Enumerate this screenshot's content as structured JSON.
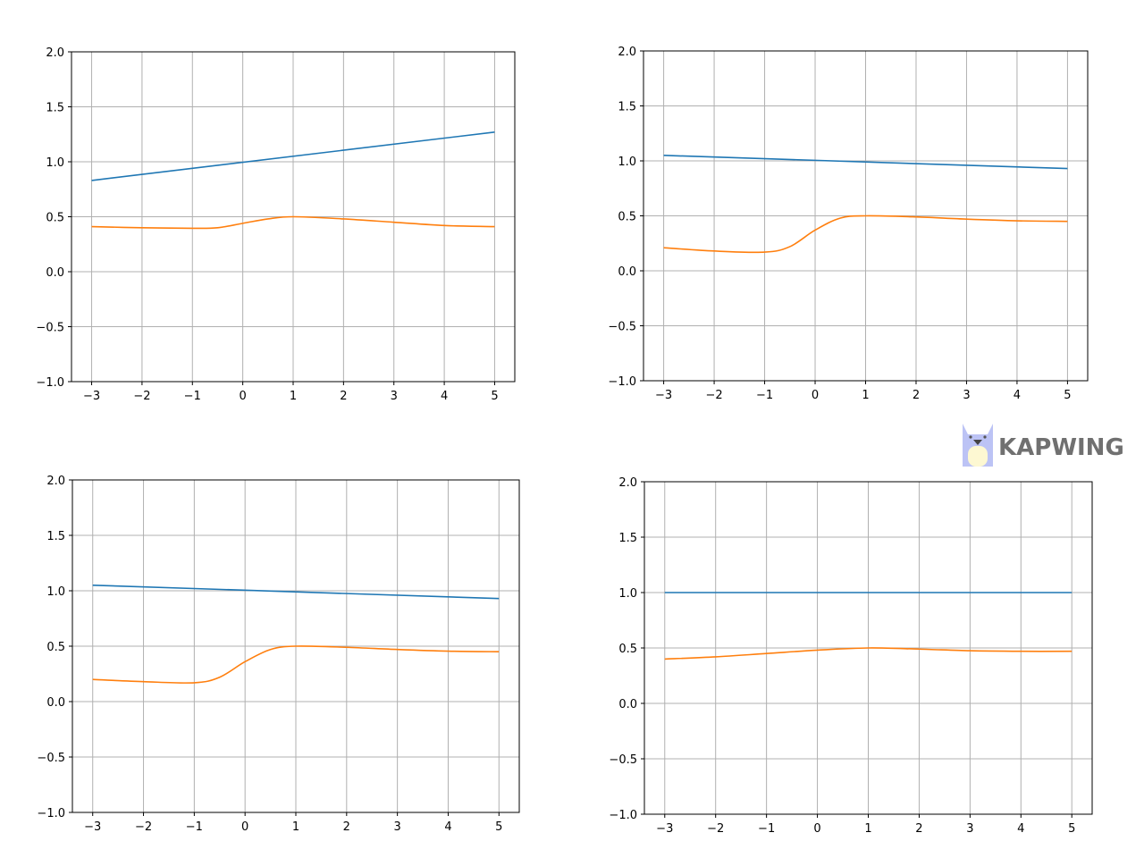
{
  "colors": {
    "series1": "#1f77b4",
    "series2": "#ff7f0e",
    "grid": "#b0b0b0"
  },
  "watermark": {
    "text": "KAPWING",
    "icon": "kapwing-cat-logo-icon"
  },
  "chart_data": [
    {
      "type": "line",
      "grid": true,
      "xlim": [
        -3.4,
        5.4
      ],
      "ylim": [
        -1,
        2
      ],
      "xticks": [
        "−3",
        "−2",
        "−1",
        "0",
        "1",
        "2",
        "3",
        "4",
        "5"
      ],
      "yticks": [
        "−1.0",
        "−0.5",
        "0.0",
        "0.5",
        "1.0",
        "1.5",
        "2.0"
      ],
      "series": [
        {
          "x": [
            -3,
            5
          ],
          "y": [
            0.83,
            1.27
          ]
        },
        {
          "x": [
            -3,
            -2,
            -1,
            -0.5,
            0,
            0.5,
            1,
            2,
            3,
            4,
            5
          ],
          "y": [
            0.41,
            0.4,
            0.395,
            0.4,
            0.44,
            0.48,
            0.5,
            0.48,
            0.45,
            0.42,
            0.41
          ]
        }
      ]
    },
    {
      "type": "line",
      "grid": true,
      "xlim": [
        -3.4,
        5.4
      ],
      "ylim": [
        -1,
        2
      ],
      "xticks": [
        "−3",
        "−2",
        "−1",
        "0",
        "1",
        "2",
        "3",
        "4",
        "5"
      ],
      "yticks": [
        "−1.0",
        "−0.5",
        "0.0",
        "0.5",
        "1.0",
        "1.5",
        "2.0"
      ],
      "series": [
        {
          "x": [
            -3,
            5
          ],
          "y": [
            1.05,
            0.93
          ]
        },
        {
          "x": [
            -3,
            -2,
            -1,
            -0.5,
            0,
            0.5,
            1,
            2,
            3,
            4,
            5
          ],
          "y": [
            0.21,
            0.18,
            0.17,
            0.22,
            0.37,
            0.48,
            0.5,
            0.49,
            0.47,
            0.455,
            0.45
          ]
        }
      ]
    },
    {
      "type": "line",
      "grid": true,
      "xlim": [
        -3.4,
        5.4
      ],
      "ylim": [
        -1,
        2
      ],
      "xticks": [
        "−3",
        "−2",
        "−1",
        "0",
        "1",
        "2",
        "3",
        "4",
        "5"
      ],
      "yticks": [
        "−1.0",
        "−0.5",
        "0.0",
        "0.5",
        "1.0",
        "1.5",
        "2.0"
      ],
      "series": [
        {
          "x": [
            -3,
            5
          ],
          "y": [
            1.05,
            0.93
          ]
        },
        {
          "x": [
            -3,
            -2,
            -1,
            -0.5,
            0,
            0.5,
            1,
            2,
            3,
            4,
            5
          ],
          "y": [
            0.2,
            0.18,
            0.17,
            0.22,
            0.36,
            0.47,
            0.5,
            0.49,
            0.47,
            0.455,
            0.45
          ]
        }
      ]
    },
    {
      "type": "line",
      "grid": true,
      "xlim": [
        -3.4,
        5.4
      ],
      "ylim": [
        -1,
        2
      ],
      "xticks": [
        "−3",
        "−2",
        "−1",
        "0",
        "1",
        "2",
        "3",
        "4",
        "5"
      ],
      "yticks": [
        "−1.0",
        "−0.5",
        "0.0",
        "0.5",
        "1.0",
        "1.5",
        "2.0"
      ],
      "series": [
        {
          "x": [
            -3,
            5
          ],
          "y": [
            1.0,
            1.0
          ]
        },
        {
          "x": [
            -3,
            -2,
            -1,
            0,
            1,
            2,
            3,
            4,
            5
          ],
          "y": [
            0.4,
            0.42,
            0.45,
            0.48,
            0.5,
            0.49,
            0.475,
            0.47,
            0.47
          ]
        }
      ]
    }
  ]
}
